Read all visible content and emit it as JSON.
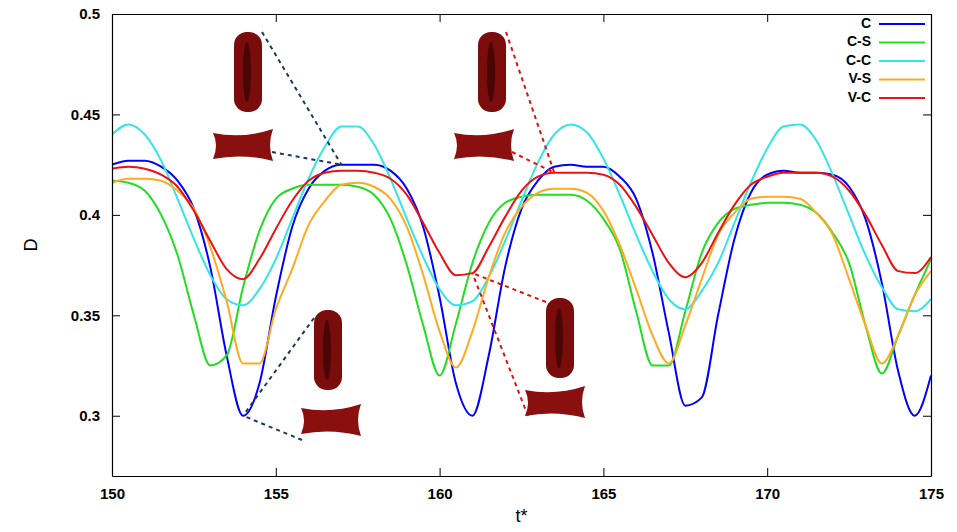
{
  "chart_data": {
    "type": "line",
    "x_label": "t*",
    "y_label": "D",
    "xlim": [
      150,
      175
    ],
    "ylim": [
      0.27,
      0.5
    ],
    "xticks": [
      150,
      155,
      160,
      165,
      170,
      175
    ],
    "yticks": [
      0.3,
      0.35,
      0.4,
      0.45,
      0.5
    ],
    "grid": false,
    "legend": "top-right",
    "x": [
      150,
      150.5,
      151,
      151.5,
      152,
      152.5,
      153,
      153.5,
      154,
      154.5,
      155,
      155.5,
      156,
      156.5,
      157,
      157.5,
      158,
      158.5,
      159,
      159.5,
      160,
      160.5,
      161,
      161.5,
      162,
      162.5,
      163,
      163.5,
      164,
      164.5,
      165,
      165.5,
      166,
      166.5,
      167,
      167.5,
      168,
      168.5,
      169,
      169.5,
      170,
      170.5,
      171,
      171.5,
      172,
      172.5,
      173,
      173.5,
      174,
      174.5,
      175
    ],
    "series": [
      {
        "name": "C",
        "color": "#0000ff",
        "values": [
          0.425,
          0.427,
          0.427,
          0.424,
          0.417,
          0.403,
          0.374,
          0.33,
          0.3,
          0.316,
          0.359,
          0.394,
          0.413,
          0.422,
          0.425,
          0.425,
          0.425,
          0.422,
          0.413,
          0.394,
          0.359,
          0.316,
          0.3,
          0.33,
          0.374,
          0.403,
          0.417,
          0.424,
          0.425,
          0.424,
          0.424,
          0.419,
          0.408,
          0.381,
          0.341,
          0.305,
          0.309,
          0.35,
          0.388,
          0.411,
          0.42,
          0.422,
          0.421,
          0.421,
          0.42,
          0.414,
          0.398,
          0.366,
          0.322,
          0.3,
          0.32
        ]
      },
      {
        "name": "C-S",
        "color": "#22dd22",
        "values": [
          0.417,
          0.416,
          0.412,
          0.4,
          0.38,
          0.35,
          0.325,
          0.33,
          0.364,
          0.392,
          0.408,
          0.413,
          0.415,
          0.415,
          0.415,
          0.414,
          0.41,
          0.398,
          0.375,
          0.345,
          0.32,
          0.346,
          0.376,
          0.396,
          0.406,
          0.409,
          0.41,
          0.41,
          0.41,
          0.407,
          0.398,
          0.383,
          0.352,
          0.325,
          0.325,
          0.352,
          0.381,
          0.396,
          0.403,
          0.405,
          0.406,
          0.406,
          0.405,
          0.401,
          0.391,
          0.376,
          0.345,
          0.321,
          0.34,
          0.36,
          0.378
        ]
      },
      {
        "name": "C-C",
        "color": "#33e6e6",
        "values": [
          0.44,
          0.445,
          0.44,
          0.427,
          0.408,
          0.388,
          0.37,
          0.358,
          0.355,
          0.363,
          0.378,
          0.398,
          0.418,
          0.434,
          0.444,
          0.444,
          0.435,
          0.418,
          0.398,
          0.379,
          0.363,
          0.355,
          0.357,
          0.369,
          0.387,
          0.407,
          0.426,
          0.44,
          0.445,
          0.441,
          0.428,
          0.41,
          0.39,
          0.372,
          0.358,
          0.353,
          0.362,
          0.376,
          0.396,
          0.416,
          0.433,
          0.444,
          0.445,
          0.437,
          0.42,
          0.4,
          0.38,
          0.364,
          0.353,
          0.352,
          0.358
        ]
      },
      {
        "name": "V-S",
        "color": "#ffaa22",
        "values": [
          0.416,
          0.418,
          0.418,
          0.417,
          0.412,
          0.403,
          0.384,
          0.357,
          0.326,
          0.326,
          0.353,
          0.373,
          0.395,
          0.407,
          0.415,
          0.416,
          0.414,
          0.408,
          0.394,
          0.37,
          0.342,
          0.324,
          0.342,
          0.369,
          0.391,
          0.404,
          0.411,
          0.413,
          0.413,
          0.411,
          0.402,
          0.385,
          0.363,
          0.34,
          0.326,
          0.345,
          0.368,
          0.39,
          0.401,
          0.408,
          0.409,
          0.409,
          0.408,
          0.401,
          0.39,
          0.368,
          0.345,
          0.326,
          0.34,
          0.36,
          0.372
        ]
      },
      {
        "name": "V-C",
        "color": "#ee1111",
        "values": [
          0.423,
          0.424,
          0.423,
          0.42,
          0.414,
          0.402,
          0.387,
          0.373,
          0.368,
          0.378,
          0.393,
          0.407,
          0.417,
          0.421,
          0.422,
          0.422,
          0.421,
          0.418,
          0.41,
          0.396,
          0.381,
          0.37,
          0.371,
          0.384,
          0.399,
          0.412,
          0.419,
          0.421,
          0.421,
          0.421,
          0.42,
          0.415,
          0.404,
          0.39,
          0.376,
          0.369,
          0.376,
          0.391,
          0.405,
          0.415,
          0.419,
          0.421,
          0.421,
          0.421,
          0.419,
          0.412,
          0.4,
          0.385,
          0.372,
          0.371,
          0.379
        ]
      }
    ]
  }
}
